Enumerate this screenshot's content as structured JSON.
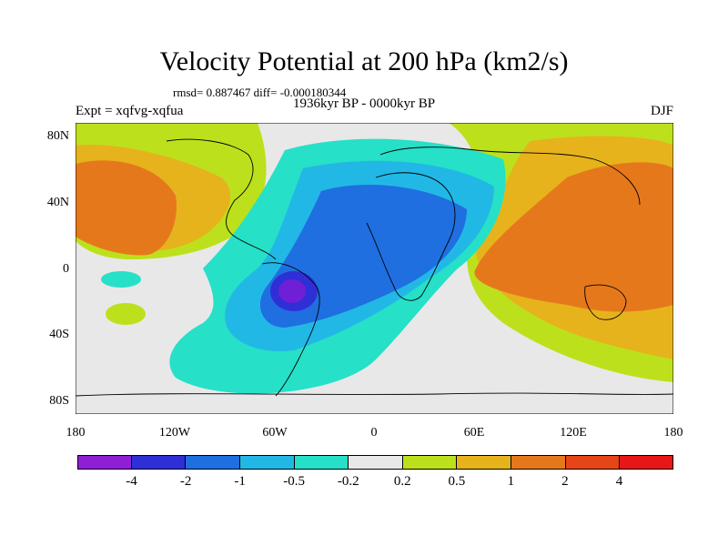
{
  "title": "Velocity Potential at 200 hPa (km2/s)",
  "stats_line": "rmsd= 0.887467 diff= -0.000180344",
  "period_line": "1936kyr BP - 0000kyr BP",
  "experiment": "Expt = xqfvg-xqfua",
  "season": "DJF",
  "lat_labels": [
    "80N",
    "40N",
    "0",
    "40S",
    "80S"
  ],
  "lon_labels": [
    "180",
    "120W",
    "60W",
    "0",
    "60E",
    "120E",
    "180"
  ],
  "colorbar": {
    "colors": [
      "#8f1fd6",
      "#2f2fd6",
      "#1f6fe0",
      "#22b8e6",
      "#26e0c8",
      "#e8e8e8",
      "#bde01c",
      "#e6b31c",
      "#e6781c",
      "#e64517",
      "#e61717"
    ],
    "labels": [
      "-4",
      "-2",
      "-1",
      "-0.5",
      "-0.2",
      "0.2",
      "0.5",
      "1",
      "2",
      "4"
    ]
  }
}
